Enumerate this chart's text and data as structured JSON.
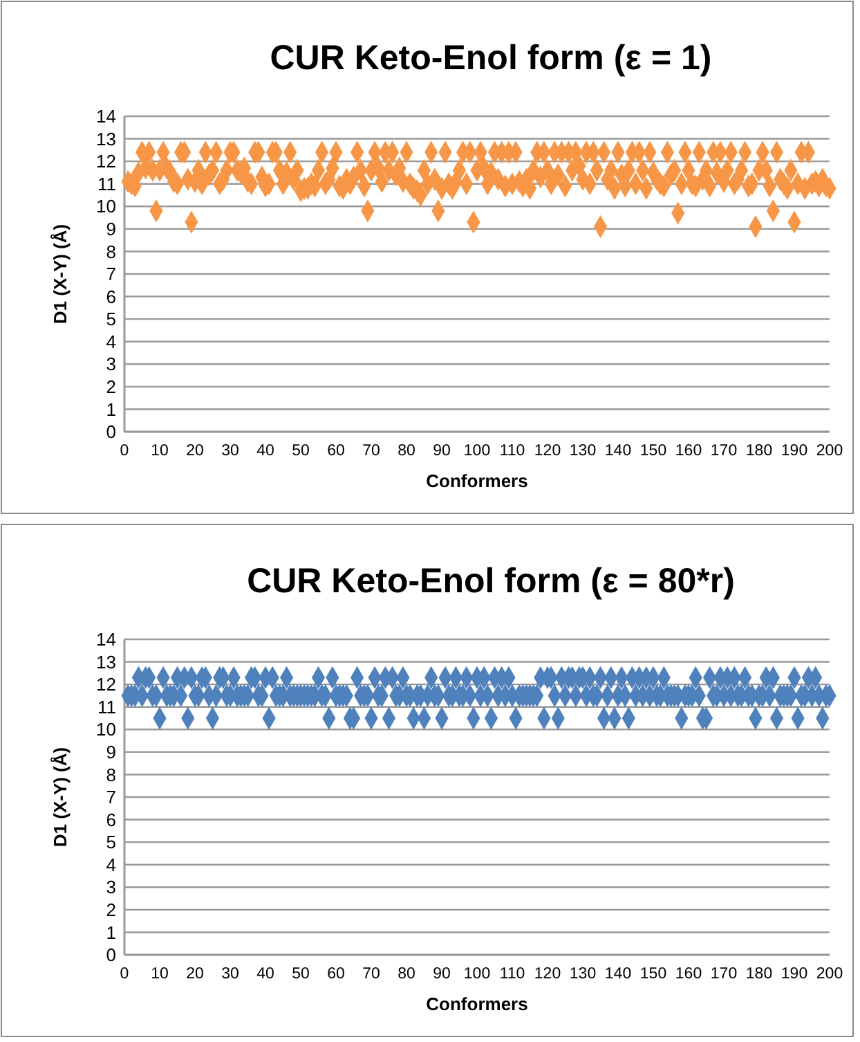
{
  "chart_data": [
    {
      "type": "scatter",
      "title": "CUR Keto-Enol form (ε = 1)",
      "xlabel": "Conformers",
      "ylabel": "D1 (X-Y) (Å)",
      "xlim": [
        0,
        200
      ],
      "xticks": [
        0,
        10,
        20,
        30,
        40,
        50,
        60,
        70,
        80,
        90,
        100,
        110,
        120,
        130,
        140,
        150,
        160,
        170,
        180,
        190,
        200
      ],
      "ylim": [
        0,
        14
      ],
      "yticks": [
        0,
        1,
        2,
        3,
        4,
        5,
        6,
        7,
        8,
        9,
        10,
        11,
        12,
        13,
        14
      ],
      "grid": "y",
      "marker": "diamond",
      "x": [
        1,
        2,
        3,
        4,
        5,
        6,
        7,
        8,
        9,
        10,
        11,
        12,
        13,
        14,
        15,
        16,
        17,
        18,
        19,
        20,
        21,
        22,
        23,
        24,
        25,
        26,
        27,
        28,
        29,
        30,
        31,
        32,
        33,
        34,
        35,
        36,
        37,
        38,
        39,
        40,
        41,
        42,
        43,
        44,
        45,
        46,
        47,
        48,
        49,
        50,
        51,
        52,
        53,
        54,
        55,
        56,
        57,
        58,
        59,
        60,
        61,
        62,
        63,
        64,
        65,
        66,
        67,
        68,
        69,
        70,
        71,
        72,
        73,
        74,
        75,
        76,
        77,
        78,
        79,
        80,
        81,
        82,
        83,
        84,
        85,
        86,
        87,
        88,
        89,
        90,
        91,
        92,
        93,
        94,
        95,
        96,
        97,
        98,
        99,
        100,
        101,
        102,
        103,
        104,
        105,
        106,
        107,
        108,
        109,
        110,
        111,
        112,
        113,
        114,
        115,
        116,
        117,
        118,
        119,
        120,
        121,
        122,
        123,
        124,
        125,
        126,
        127,
        128,
        129,
        130,
        131,
        132,
        133,
        134,
        135,
        136,
        137,
        138,
        139,
        140,
        141,
        142,
        143,
        144,
        145,
        146,
        147,
        148,
        149,
        150,
        151,
        152,
        153,
        154,
        155,
        156,
        157,
        158,
        159,
        160,
        161,
        162,
        163,
        164,
        165,
        166,
        167,
        168,
        169,
        170,
        171,
        172,
        173,
        174,
        175,
        176,
        177,
        178,
        179,
        180,
        181,
        182,
        183,
        184,
        185,
        186,
        187,
        188,
        189,
        190,
        191,
        192,
        193,
        194,
        195,
        196,
        197,
        198,
        199,
        200
      ],
      "series": [
        {
          "color": "#f79646",
          "values": [
            11.1,
            11.0,
            10.9,
            11.5,
            12.4,
            11.7,
            12.4,
            11.6,
            9.8,
            11.6,
            12.4,
            11.7,
            11.5,
            11.1,
            11.0,
            12.4,
            12.4,
            11.2,
            9.3,
            11.1,
            11.6,
            11.0,
            12.4,
            11.4,
            11.6,
            12.4,
            11.0,
            11.2,
            11.6,
            12.4,
            12.4,
            11.6,
            11.5,
            11.7,
            11.1,
            11.0,
            12.4,
            12.4,
            11.3,
            10.9,
            11.0,
            12.4,
            12.4,
            11.6,
            11.0,
            11.5,
            12.4,
            11.2,
            11.6,
            10.7,
            10.8,
            10.8,
            11.0,
            10.9,
            11.6,
            12.4,
            11.0,
            11.2,
            11.7,
            12.4,
            10.9,
            10.8,
            11.2,
            11.0,
            11.3,
            12.4,
            11.6,
            10.9,
            9.8,
            11.6,
            12.4,
            11.7,
            11.1,
            12.4,
            11.6,
            12.4,
            11.4,
            11.7,
            11.1,
            12.4,
            11.0,
            10.8,
            10.7,
            10.5,
            11.6,
            11.0,
            12.4,
            11.2,
            9.8,
            10.8,
            12.4,
            11.0,
            10.8,
            11.1,
            11.6,
            12.4,
            11.0,
            12.4,
            9.3,
            11.6,
            12.4,
            11.7,
            11.0,
            11.5,
            12.4,
            11.2,
            12.4,
            10.9,
            12.4,
            11.0,
            12.4,
            11.1,
            10.9,
            11.2,
            10.8,
            11.6,
            12.4,
            11.3,
            12.4,
            11.6,
            11.0,
            12.4,
            11.4,
            12.4,
            10.9,
            12.4,
            11.6,
            12.4,
            11.8,
            11.2,
            12.4,
            11.0,
            12.4,
            11.6,
            9.1,
            12.4,
            11.2,
            11.6,
            10.8,
            12.4,
            11.4,
            10.9,
            11.6,
            12.4,
            11.0,
            12.4,
            11.6,
            10.8,
            12.4,
            11.5,
            11.2,
            11.0,
            10.9,
            12.4,
            11.4,
            11.6,
            9.7,
            11.0,
            12.4,
            11.6,
            11.0,
            10.9,
            12.4,
            11.2,
            11.6,
            10.9,
            12.4,
            11.5,
            12.4,
            11.1,
            11.6,
            12.4,
            11.0,
            11.2,
            11.6,
            12.4,
            10.9,
            11.0,
            9.1,
            11.6,
            12.4,
            11.6,
            10.9,
            9.8,
            12.4,
            11.2,
            11.0,
            10.8,
            11.6,
            9.3,
            11.0,
            12.4,
            10.8,
            12.4,
            11.0,
            11.1,
            10.9,
            11.2,
            10.9,
            10.8
          ]
        }
      ]
    },
    {
      "type": "scatter",
      "title": "CUR Keto-Enol form (ε = 80*r)",
      "xlabel": "Conformers",
      "ylabel": "D1 (X-Y) (Å)",
      "xlim": [
        0,
        200
      ],
      "xticks": [
        0,
        10,
        20,
        30,
        40,
        50,
        60,
        70,
        80,
        90,
        100,
        110,
        120,
        130,
        140,
        150,
        160,
        170,
        180,
        190,
        200
      ],
      "ylim": [
        0,
        14
      ],
      "yticks": [
        0,
        1,
        2,
        3,
        4,
        5,
        6,
        7,
        8,
        9,
        10,
        11,
        12,
        13,
        14
      ],
      "grid": "y",
      "marker": "diamond",
      "x": [
        1,
        2,
        3,
        4,
        5,
        6,
        7,
        8,
        9,
        10,
        11,
        12,
        13,
        14,
        15,
        16,
        17,
        18,
        19,
        20,
        21,
        22,
        23,
        24,
        25,
        26,
        27,
        28,
        29,
        30,
        31,
        32,
        33,
        34,
        35,
        36,
        37,
        38,
        39,
        40,
        41,
        42,
        43,
        44,
        45,
        46,
        47,
        48,
        49,
        50,
        51,
        52,
        53,
        54,
        55,
        56,
        57,
        58,
        59,
        60,
        61,
        62,
        63,
        64,
        65,
        66,
        67,
        68,
        69,
        70,
        71,
        72,
        73,
        74,
        75,
        76,
        77,
        78,
        79,
        80,
        81,
        82,
        83,
        84,
        85,
        86,
        87,
        88,
        89,
        90,
        91,
        92,
        93,
        94,
        95,
        96,
        97,
        98,
        99,
        100,
        101,
        102,
        103,
        104,
        105,
        106,
        107,
        108,
        109,
        110,
        111,
        112,
        113,
        114,
        115,
        116,
        117,
        118,
        119,
        120,
        121,
        122,
        123,
        124,
        125,
        126,
        127,
        128,
        129,
        130,
        131,
        132,
        133,
        134,
        135,
        136,
        137,
        138,
        139,
        140,
        141,
        142,
        143,
        144,
        145,
        146,
        147,
        148,
        149,
        150,
        151,
        152,
        153,
        154,
        155,
        156,
        157,
        158,
        159,
        160,
        161,
        162,
        163,
        164,
        165,
        166,
        167,
        168,
        169,
        170,
        171,
        172,
        173,
        174,
        175,
        176,
        177,
        178,
        179,
        180,
        181,
        182,
        183,
        184,
        185,
        186,
        187,
        188,
        189,
        190,
        191,
        192,
        193,
        194,
        195,
        196,
        197,
        198,
        199,
        200
      ],
      "series": [
        {
          "color": "#4f81bd",
          "values": [
            11.5,
            11.5,
            11.5,
            12.3,
            11.5,
            12.3,
            12.3,
            11.5,
            11.5,
            10.5,
            12.3,
            11.5,
            11.5,
            11.5,
            12.3,
            11.5,
            12.3,
            10.5,
            12.3,
            11.5,
            11.5,
            12.3,
            12.3,
            11.5,
            10.5,
            11.5,
            12.3,
            12.3,
            11.5,
            11.5,
            12.3,
            11.5,
            11.5,
            11.5,
            11.5,
            12.3,
            12.3,
            11.5,
            11.5,
            12.3,
            10.5,
            12.3,
            11.5,
            11.5,
            11.5,
            12.3,
            11.5,
            11.5,
            11.5,
            11.5,
            11.5,
            11.5,
            11.5,
            11.5,
            12.3,
            11.5,
            11.5,
            10.5,
            12.3,
            11.5,
            11.5,
            11.5,
            11.5,
            10.5,
            10.5,
            12.3,
            11.5,
            11.5,
            11.5,
            10.5,
            12.3,
            11.5,
            11.5,
            12.3,
            10.5,
            12.3,
            11.5,
            11.5,
            12.3,
            11.5,
            11.5,
            10.5,
            11.5,
            11.5,
            10.5,
            11.5,
            12.3,
            11.5,
            11.5,
            10.5,
            12.3,
            11.5,
            11.5,
            12.3,
            11.5,
            11.5,
            12.3,
            11.5,
            10.5,
            12.3,
            11.5,
            12.3,
            11.5,
            10.5,
            12.3,
            11.5,
            12.3,
            11.5,
            12.3,
            11.5,
            10.5,
            11.5,
            11.5,
            11.5,
            11.5,
            11.5,
            11.5,
            12.3,
            10.5,
            12.3,
            12.3,
            11.5,
            10.5,
            12.3,
            11.5,
            12.3,
            12.3,
            11.5,
            12.3,
            12.3,
            11.5,
            12.3,
            11.5,
            11.5,
            12.3,
            10.5,
            11.5,
            12.3,
            10.5,
            11.5,
            12.3,
            11.5,
            10.5,
            12.3,
            11.5,
            12.3,
            11.5,
            12.3,
            11.5,
            12.3,
            11.5,
            11.5,
            12.3,
            11.5,
            11.5,
            11.5,
            11.5,
            10.5,
            11.5,
            11.5,
            11.5,
            12.3,
            11.5,
            10.5,
            10.5,
            12.3,
            11.5,
            11.5,
            12.3,
            11.5,
            12.3,
            11.5,
            12.3,
            11.5,
            11.5,
            12.3,
            11.5,
            11.5,
            10.5,
            11.5,
            11.5,
            12.3,
            11.5,
            12.3,
            10.5,
            11.5,
            11.5,
            11.5,
            11.5,
            12.3,
            10.5,
            11.5,
            11.5,
            12.3,
            11.5,
            12.3,
            11.5,
            10.5,
            11.5,
            11.5
          ]
        }
      ]
    }
  ]
}
